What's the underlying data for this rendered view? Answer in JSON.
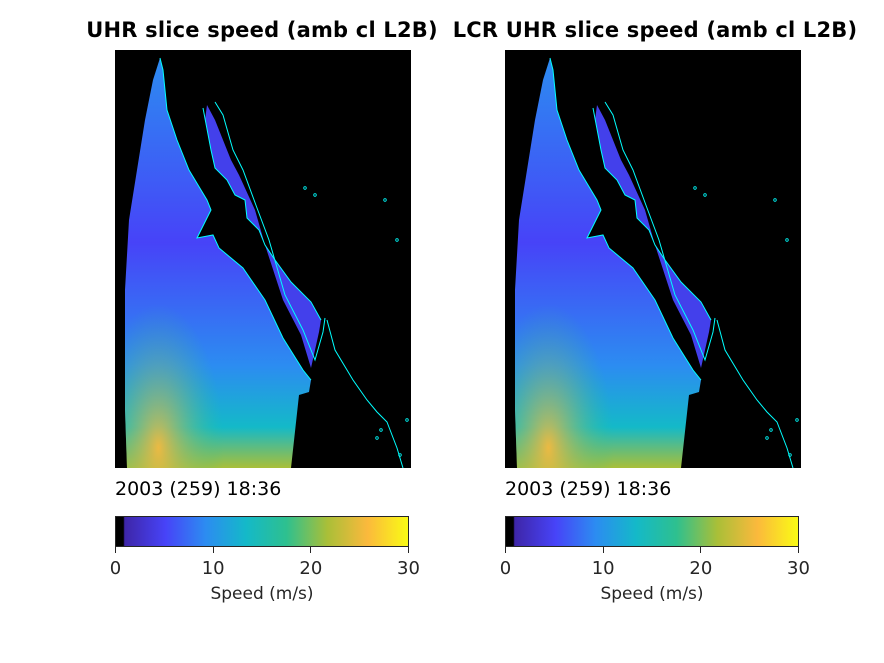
{
  "colors": {
    "background": "#ffffff",
    "land": "#000000",
    "coastline": "#00ffff",
    "colormap": [
      "#3e26a8",
      "#4743f8",
      "#2c8cf1",
      "#14b9c8",
      "#2ec08f",
      "#a9bf38",
      "#fbb93c",
      "#f9fb15"
    ],
    "no_data": "#000000"
  },
  "chart_data": [
    {
      "type": "heatmap",
      "title": "UHR slice speed (amb cl L2B)",
      "timestamp": "2003 (259) 18:36",
      "colorbar": {
        "label": "Speed (m/s)",
        "range": [
          0,
          30
        ],
        "ticks": [
          "0",
          "10",
          "20",
          "30"
        ],
        "colormap": "parula"
      }
    },
    {
      "type": "heatmap",
      "title": "LCR UHR slice speed (amb cl L2B)",
      "timestamp": "2003 (259) 18:36",
      "colorbar": {
        "label": "Speed (m/s)",
        "range": [
          0,
          30
        ],
        "ticks": [
          "0",
          "10",
          "20",
          "30"
        ],
        "colormap": "parula"
      }
    }
  ]
}
